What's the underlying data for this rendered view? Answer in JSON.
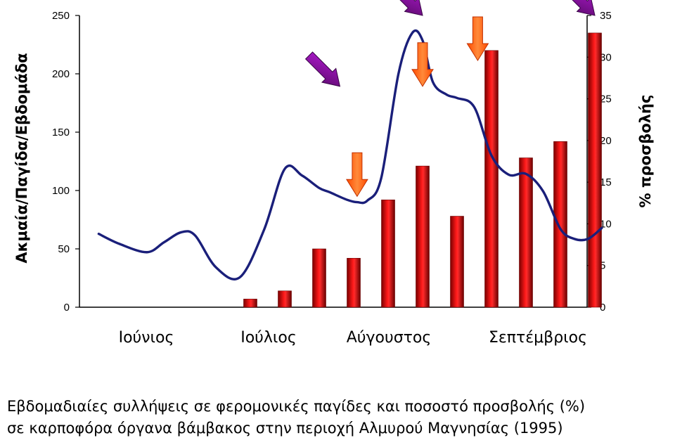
{
  "chart_data": {
    "type": "bar",
    "ylabel": "Ακμαία/Παγίδα/Εβδομάδα",
    "y2label": "% προσβολής",
    "ylim": [
      0,
      250
    ],
    "y2lim": [
      0,
      35
    ],
    "yticks": [
      "0",
      "50",
      "100",
      "150",
      "200",
      "250"
    ],
    "y2ticks": [
      "0",
      "5",
      "10",
      "15",
      "20",
      "25",
      "30",
      "35"
    ],
    "months": [
      "Ιούνιος",
      "Ιούλιος",
      "Αύγουστος",
      "Σεπτέμβριος"
    ],
    "weeks": 14,
    "bars": [
      {
        "week": 5,
        "value": 7
      },
      {
        "week": 6,
        "value": 14
      },
      {
        "week": 7,
        "value": 50
      },
      {
        "week": 8,
        "value": 42
      },
      {
        "week": 9,
        "value": 92
      },
      {
        "week": 10,
        "value": 121
      },
      {
        "week": 11,
        "value": 78
      },
      {
        "week": 12,
        "value": 220
      },
      {
        "week": 13,
        "value": 128
      },
      {
        "week": 14,
        "value": 142
      },
      {
        "week": 15,
        "value": 235
      }
    ],
    "line": {
      "x": [
        0.6,
        1.2,
        2.0,
        2.5,
        3.0,
        3.4,
        4.0,
        4.7,
        5.4,
        6.0,
        6.5,
        7.0,
        7.3,
        7.8,
        8.1,
        8.4,
        8.8,
        9.3,
        9.7,
        10.0,
        10.3,
        10.7,
        11.0,
        11.5,
        12.0,
        12.5,
        13.0,
        13.5,
        14.0,
        14.4,
        14.8,
        15.2
      ],
      "y": [
        8.8,
        7.6,
        6.6,
        7.8,
        9.0,
        8.6,
        4.8,
        3.6,
        9.3,
        16.6,
        15.8,
        14.3,
        13.8,
        12.9,
        12.6,
        12.8,
        15.5,
        28.0,
        32.9,
        32.0,
        27.0,
        25.5,
        25.1,
        24.0,
        18.2,
        15.9,
        16.0,
        13.9,
        9.4,
        8.2,
        8.2,
        9.5
      ]
    },
    "arrows": [
      {
        "style": "diagonal",
        "color": "purple",
        "x": 7.6,
        "y_pct": 26.5
      },
      {
        "style": "diagonal",
        "color": "purple",
        "x": 10.0,
        "y_pct": 35
      },
      {
        "style": "diagonal",
        "color": "purple",
        "x": 15.0,
        "y_pct": 35
      },
      {
        "style": "down",
        "color": "orange",
        "x": 8.1,
        "y_pct": 13.3
      },
      {
        "style": "down",
        "color": "orange",
        "x": 10.0,
        "y_pct": 26.5
      },
      {
        "style": "down",
        "color": "orange",
        "x": 11.6,
        "y_pct": 29.6
      }
    ]
  },
  "caption": {
    "line1": "Εβδομαδιαίες συλλήψεις σε φερομονικές παγίδες και ποσοστό προσβολής (%)",
    "line2": "σε καρποφόρα όργανα βάμβακος στην περιοχή Αλμυρού Μαγνησίας (1995)"
  },
  "colors": {
    "bar": "#e00000",
    "line": "#1a1f7a",
    "purple_arrow": "#7a0c8a",
    "orange_arrow": "#ff6a1a"
  }
}
